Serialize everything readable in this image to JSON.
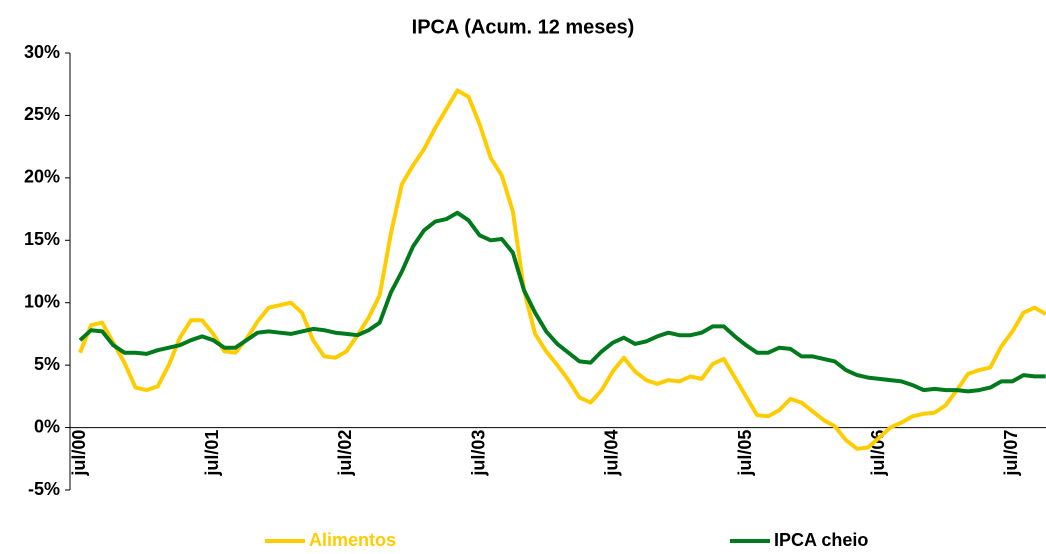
{
  "chart_data": {
    "type": "line",
    "title": "IPCA (Acum. 12 meses)",
    "categories": [
      "jul/00",
      null,
      null,
      null,
      null,
      null,
      null,
      null,
      null,
      null,
      null,
      null,
      "jul/01",
      null,
      null,
      null,
      null,
      null,
      null,
      null,
      null,
      null,
      null,
      null,
      "jul/02",
      null,
      null,
      null,
      null,
      null,
      null,
      null,
      null,
      null,
      null,
      null,
      "jul/03",
      null,
      null,
      null,
      null,
      null,
      null,
      null,
      null,
      null,
      null,
      null,
      "jul/04",
      null,
      null,
      null,
      null,
      null,
      null,
      null,
      null,
      null,
      null,
      null,
      "jul/05",
      null,
      null,
      null,
      null,
      null,
      null,
      null,
      null,
      null,
      null,
      null,
      "jul/06",
      null,
      null,
      null,
      null,
      null,
      null,
      null,
      null,
      null,
      null,
      null,
      "jul/07",
      null,
      null,
      null
    ],
    "series": [
      {
        "name": "Alimentos",
        "color": "#ffcc00",
        "values": [
          6.0,
          8.2,
          8.4,
          6.8,
          5.2,
          3.2,
          3.0,
          3.3,
          5.0,
          7.2,
          8.6,
          8.6,
          7.5,
          6.1,
          6.0,
          7.1,
          8.5,
          9.6,
          9.8,
          10.0,
          9.2,
          7.0,
          5.7,
          5.6,
          6.1,
          7.4,
          8.8,
          10.6,
          15.5,
          19.5,
          21.0,
          22.3,
          24.0,
          25.5,
          27.0,
          26.5,
          24.3,
          21.6,
          20.2,
          17.3,
          11.0,
          7.5,
          6.1,
          5.0,
          3.8,
          2.4,
          2.0,
          3.0,
          4.5,
          5.6,
          4.5,
          3.8,
          3.5,
          3.8,
          3.7,
          4.1,
          3.9,
          5.1,
          5.5,
          4.0,
          2.5,
          1.0,
          0.9,
          1.4,
          2.3,
          2.0,
          1.3,
          0.6,
          0.1,
          -1.0,
          -1.7,
          -1.6,
          -0.8,
          0.0,
          0.4,
          0.9,
          1.1,
          1.2,
          1.8,
          3.0,
          4.3,
          4.6,
          4.8,
          6.5,
          7.7,
          9.2,
          9.6,
          9.1
        ]
      },
      {
        "name": "IPCA cheio",
        "color": "#007a1c",
        "values": [
          7.0,
          7.8,
          7.7,
          6.6,
          6.0,
          6.0,
          5.9,
          6.2,
          6.4,
          6.6,
          7.0,
          7.3,
          7.0,
          6.4,
          6.4,
          7.0,
          7.6,
          7.7,
          7.6,
          7.5,
          7.7,
          7.9,
          7.8,
          7.6,
          7.5,
          7.4,
          7.8,
          8.4,
          10.8,
          12.5,
          14.5,
          15.8,
          16.5,
          16.7,
          17.2,
          16.6,
          15.4,
          15.0,
          15.1,
          14.0,
          11.0,
          9.2,
          7.7,
          6.7,
          6.0,
          5.3,
          5.2,
          6.1,
          6.8,
          7.2,
          6.7,
          6.9,
          7.3,
          7.6,
          7.4,
          7.4,
          7.6,
          8.1,
          8.1,
          7.3,
          6.6,
          6.0,
          6.0,
          6.4,
          6.3,
          5.7,
          5.7,
          5.5,
          5.3,
          4.6,
          4.2,
          4.0,
          3.9,
          3.8,
          3.7,
          3.4,
          3.0,
          3.1,
          3.0,
          3.0,
          2.9,
          3.0,
          3.2,
          3.7,
          3.7,
          4.2,
          4.1,
          4.1
        ]
      }
    ],
    "ylim": [
      -5,
      30
    ],
    "yticks": [
      {
        "value": -5,
        "label": "-5%"
      },
      {
        "value": 0,
        "label": "0%"
      },
      {
        "value": 5,
        "label": "5%"
      },
      {
        "value": 10,
        "label": "10%"
      },
      {
        "value": 15,
        "label": "15%"
      },
      {
        "value": 20,
        "label": "20%"
      },
      {
        "value": 25,
        "label": "25%"
      },
      {
        "value": 30,
        "label": "30%"
      }
    ],
    "grid": false
  }
}
